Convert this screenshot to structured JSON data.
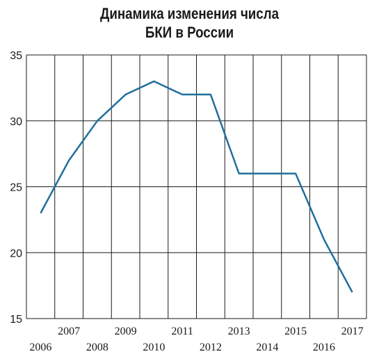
{
  "chart_data": {
    "type": "line",
    "title_lines": [
      "Динамика изменения числа",
      "БКИ в России"
    ],
    "x": [
      "2006",
      "2007",
      "2008",
      "2009",
      "2010",
      "2011",
      "2012",
      "2013",
      "2014",
      "2015",
      "2016",
      "2017"
    ],
    "values": [
      23,
      27,
      30,
      32,
      33,
      32,
      32,
      26,
      26,
      26,
      21,
      17
    ],
    "ylim": [
      15,
      35
    ],
    "yticks": [
      15,
      20,
      25,
      30,
      35
    ],
    "grid": true,
    "line_color": "#1f6f9c"
  }
}
